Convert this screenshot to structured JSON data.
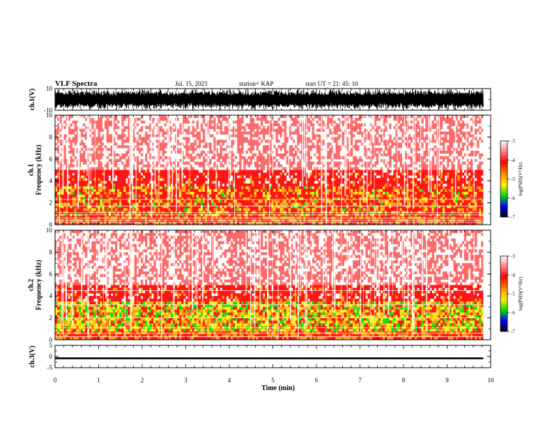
{
  "header": {
    "title": "VLF Spectra",
    "date": "Jul. 15, 2023",
    "station": "station= KAP",
    "start": "start UT =  21: 45: 10"
  },
  "chart_data": [
    {
      "type": "line",
      "name": "ch1-waveform",
      "ylabel": "ch.1(V)",
      "ylim": [
        -10,
        10
      ],
      "yticks": [
        "10",
        "-10"
      ],
      "xlim": [
        0,
        10
      ],
      "note": "dense waveform trace filling most of the range"
    },
    {
      "type": "heatmap",
      "name": "ch1-spectrogram",
      "ylabel": "ch.1\nFrequency (kHz)",
      "ylim": [
        0,
        10
      ],
      "yticks": [
        "0",
        "2",
        "4",
        "6",
        "8",
        "10"
      ],
      "xlim": [
        0,
        10
      ],
      "colorbar": {
        "label": "log(PSD)(V²/Hz)",
        "ticks": [
          "-3",
          "-4",
          "-5",
          "-6",
          "-7"
        ],
        "range": [
          -7,
          -3
        ]
      }
    },
    {
      "type": "heatmap",
      "name": "ch2-spectrogram",
      "ylabel": "ch.2\nFrequency (kHz)",
      "ylim": [
        0,
        10
      ],
      "yticks": [
        "0",
        "2",
        "4",
        "6",
        "8",
        "10"
      ],
      "xlim": [
        0,
        10
      ],
      "colorbar": {
        "label": "log(PSD)(V²/Hz)",
        "ticks": [
          "-3",
          "-4",
          "-5",
          "-6",
          "-7"
        ],
        "range": [
          -7,
          -3
        ]
      }
    },
    {
      "type": "line",
      "name": "ch3-waveform",
      "ylabel": "ch.3(V)",
      "ylim": [
        -5,
        5
      ],
      "yticks": [
        "5",
        "0",
        "-5"
      ],
      "xlim": [
        0,
        10
      ],
      "note": "nearly constant thick trace slightly below 0"
    }
  ],
  "xaxis": {
    "label": "Time (min)",
    "ticks": [
      "0",
      "1",
      "2",
      "3",
      "4",
      "5",
      "6",
      "7",
      "8",
      "9",
      "10"
    ]
  },
  "colors": {
    "frame": "#000000",
    "heat_white": "#ffffff",
    "heat_red": "#ff0000",
    "heat_orange": "#ff9900",
    "heat_yellow": "#ffee00",
    "heat_green": "#00dd00",
    "heat_blue": "#0000ff",
    "heat_black": "#000000"
  }
}
